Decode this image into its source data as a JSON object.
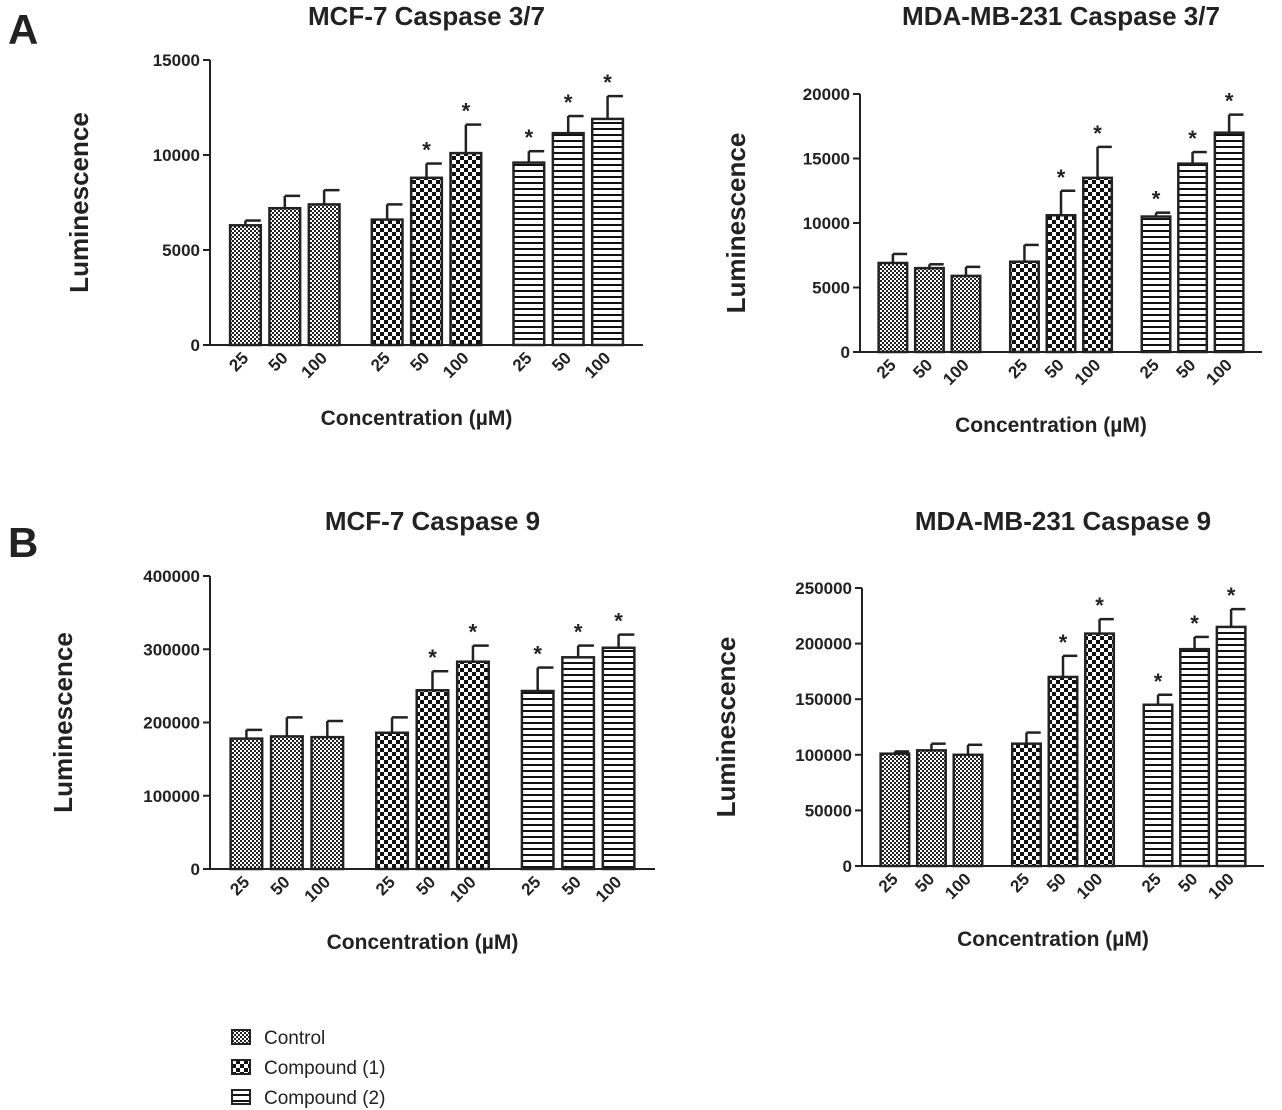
{
  "panel_labels": [
    "A",
    "B"
  ],
  "significance_mark": "*",
  "chart_data": [
    {
      "type": "bar",
      "title": "MCF-7 Caspase 3/7",
      "ylabel": "Luminescence",
      "xlabel": "Concentration (µM)",
      "categories": [
        "25",
        "50",
        "100"
      ],
      "ylim": [
        0,
        15000
      ],
      "yticks": [
        0,
        5000,
        10000,
        15000
      ],
      "series": [
        {
          "name": "Control",
          "pattern": "fine-check",
          "values": [
            6300,
            7200,
            7400
          ],
          "errors": [
            250,
            650,
            750
          ],
          "significant": [
            false,
            false,
            false
          ]
        },
        {
          "name": "Compound (1)",
          "pattern": "coarse-check",
          "values": [
            6600,
            8800,
            10100
          ],
          "errors": [
            800,
            750,
            1500
          ],
          "significant": [
            false,
            true,
            true
          ]
        },
        {
          "name": "Compound (2)",
          "pattern": "h-stripe",
          "values": [
            9600,
            11150,
            11900
          ],
          "errors": [
            600,
            900,
            1200
          ],
          "significant": [
            true,
            true,
            true
          ]
        }
      ]
    },
    {
      "type": "bar",
      "title": "MDA-MB-231 Caspase 3/7",
      "ylabel": "Luminescence",
      "xlabel": "Concentration (µM)",
      "categories": [
        "25",
        "50",
        "100"
      ],
      "ylim": [
        0,
        20000
      ],
      "yticks": [
        0,
        5000,
        10000,
        15000,
        20000
      ],
      "series": [
        {
          "name": "Control",
          "pattern": "fine-check",
          "values": [
            6900,
            6500,
            5900
          ],
          "errors": [
            700,
            300,
            700
          ],
          "significant": [
            false,
            false,
            false
          ]
        },
        {
          "name": "Compound (1)",
          "pattern": "coarse-check",
          "values": [
            7000,
            10600,
            13500
          ],
          "errors": [
            1300,
            1900,
            2400
          ],
          "significant": [
            false,
            true,
            true
          ]
        },
        {
          "name": "Compound (2)",
          "pattern": "h-stripe",
          "values": [
            10500,
            14600,
            17000
          ],
          "errors": [
            300,
            900,
            1400
          ],
          "significant": [
            true,
            true,
            true
          ]
        }
      ]
    },
    {
      "type": "bar",
      "title": "MCF-7 Caspase 9",
      "ylabel": "Luminescence",
      "xlabel": "Concentration (µM)",
      "categories": [
        "25",
        "50",
        "100"
      ],
      "ylim": [
        0,
        400000
      ],
      "yticks": [
        0,
        100000,
        200000,
        300000,
        400000
      ],
      "series": [
        {
          "name": "Control",
          "pattern": "fine-check",
          "values": [
            178000,
            181000,
            180000
          ],
          "errors": [
            12000,
            26000,
            22000
          ],
          "significant": [
            false,
            false,
            false
          ]
        },
        {
          "name": "Compound (1)",
          "pattern": "coarse-check",
          "values": [
            186000,
            244000,
            283000
          ],
          "errors": [
            21000,
            26000,
            22000
          ],
          "significant": [
            false,
            true,
            true
          ]
        },
        {
          "name": "Compound (2)",
          "pattern": "h-stripe",
          "values": [
            243000,
            289000,
            302000
          ],
          "errors": [
            32000,
            16000,
            18000
          ],
          "significant": [
            true,
            true,
            true
          ]
        }
      ]
    },
    {
      "type": "bar",
      "title": "MDA-MB-231 Caspase 9",
      "ylabel": "Luminescence",
      "xlabel": "Concentration (µM)",
      "categories": [
        "25",
        "50",
        "100"
      ],
      "ylim": [
        0,
        250000
      ],
      "yticks": [
        0,
        50000,
        100000,
        150000,
        200000,
        250000
      ],
      "series": [
        {
          "name": "Control",
          "pattern": "fine-check",
          "values": [
            101000,
            104000,
            100000
          ],
          "errors": [
            2000,
            6000,
            9000
          ],
          "significant": [
            false,
            false,
            false
          ]
        },
        {
          "name": "Compound (1)",
          "pattern": "coarse-check",
          "values": [
            110000,
            170000,
            209000
          ],
          "errors": [
            10000,
            19000,
            13000
          ],
          "significant": [
            false,
            true,
            true
          ]
        },
        {
          "name": "Compound (2)",
          "pattern": "h-stripe",
          "values": [
            145000,
            195000,
            215000
          ],
          "errors": [
            9000,
            11000,
            16000
          ],
          "significant": [
            true,
            true,
            true
          ]
        }
      ]
    }
  ]
}
